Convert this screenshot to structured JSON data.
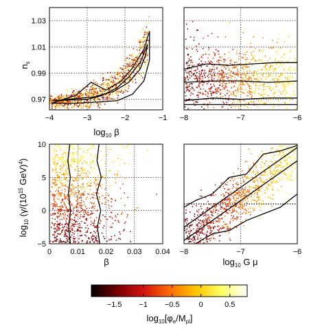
{
  "chart_data": [
    {
      "panel": "top-left",
      "type": "scatter",
      "xlabel": "log10 β",
      "ylabel": "n_s",
      "xlim": [
        -4,
        -1
      ],
      "ylim": [
        0.962,
        1.04
      ],
      "xticks": [
        "-4",
        "-3",
        "-2",
        "-1"
      ],
      "yticks": [
        "0.97",
        "0.99",
        "1.01",
        "1.03"
      ],
      "grid": true,
      "scatter_trend": {
        "x": [
          -4,
          -3.5,
          -3,
          -2.6,
          -2.2,
          -1.9,
          -1.6,
          -1.4
        ],
        "y": [
          0.968,
          0.969,
          0.971,
          0.975,
          0.982,
          0.991,
          1.002,
          1.012
        ]
      },
      "contours": [
        {
          "name": "inner",
          "x": [
            -3.9,
            -3.0,
            -2.6,
            -2.2,
            -1.9,
            -1.6,
            -1.4,
            -1.45,
            -1.6,
            -1.9,
            -2.3,
            -2.8,
            -3.5,
            -3.9
          ],
          "y": [
            0.969,
            0.97,
            0.973,
            0.979,
            0.987,
            0.998,
            1.012,
            1.004,
            0.993,
            0.983,
            0.976,
            0.972,
            0.97,
            0.969
          ]
        },
        {
          "name": "outer",
          "x": [
            -3.95,
            -3.3,
            -2.9,
            -2.5,
            -2.1,
            -1.8,
            -1.5,
            -1.35,
            -1.35,
            -1.5,
            -1.8,
            -2.2,
            -2.7,
            -3.3,
            -3.95
          ],
          "y": [
            0.967,
            0.973,
            0.983,
            0.977,
            0.984,
            0.994,
            1.008,
            1.022,
            1.0,
            0.984,
            0.974,
            0.969,
            0.968,
            0.967,
            0.967
          ]
        }
      ]
    },
    {
      "panel": "top-right",
      "type": "scatter",
      "xlabel": "",
      "ylabel": "",
      "xlim": [
        -8,
        -6
      ],
      "ylim": [
        0.962,
        1.04
      ],
      "xticks": [
        "-8",
        "-7",
        "-6"
      ],
      "grid": true,
      "scatter_band": {
        "y_center": 0.985,
        "y_spread": 0.013
      },
      "contours": [
        {
          "name": "upper",
          "x": [
            -8,
            -7.6,
            -7.2,
            -6.8,
            -6.4,
            -6
          ],
          "y": [
            0.993,
            0.997,
            0.996,
            0.997,
            0.998,
            0.998
          ]
        },
        {
          "name": "middle",
          "x": [
            -8,
            -7.5,
            -7,
            -6.5,
            -6
          ],
          "y": [
            0.983,
            0.984,
            0.984,
            0.983,
            0.984
          ]
        },
        {
          "name": "lower",
          "x": [
            -8,
            -7.5,
            -7,
            -6.5,
            -6
          ],
          "y": [
            0.969,
            0.971,
            0.97,
            0.971,
            0.971
          ]
        },
        {
          "name": "bottom",
          "x": [
            -8,
            -7,
            -6
          ],
          "y": [
            0.966,
            0.966,
            0.966
          ]
        }
      ]
    },
    {
      "panel": "bottom-left",
      "type": "scatter",
      "xlabel": "β",
      "ylabel": "log10 (γ/(10^15 GeV)^4)",
      "xlim": [
        0,
        0.04
      ],
      "ylim": [
        -5,
        10
      ],
      "xticks": [
        "0",
        "0.01",
        "0.02",
        "0.03",
        "0.04"
      ],
      "yticks": [
        "-5",
        "0",
        "5",
        "10"
      ],
      "grid": true,
      "contours": [
        {
          "name": "left",
          "x": [
            0.0072,
            0.0065,
            0.0074,
            0.0067,
            0.0075,
            0.0068,
            0.0074
          ],
          "y": [
            10,
            7.5,
            5,
            2.5,
            0,
            -2.5,
            -5
          ]
        },
        {
          "name": "right",
          "x": [
            0.0175,
            0.0168,
            0.0183,
            0.0166,
            0.0181,
            0.0169,
            0.0178
          ],
          "y": [
            10,
            7.5,
            5,
            2.5,
            0,
            -2.5,
            -5
          ]
        }
      ]
    },
    {
      "panel": "bottom-right",
      "type": "scatter",
      "xlabel": "log10 G μ",
      "ylabel": "",
      "xlim": [
        -8,
        -6
      ],
      "ylim": [
        -5,
        10
      ],
      "xticks": [
        "-8",
        "-7",
        "-6"
      ],
      "grid": true,
      "scatter_trend": {
        "x": [
          -8,
          -6
        ],
        "y": [
          -4.5,
          8.5
        ]
      },
      "contours": [
        {
          "name": "center-upper",
          "x": [
            -8,
            -6
          ],
          "y": [
            -2.5,
            9.5
          ]
        },
        {
          "name": "center-lower",
          "x": [
            -8,
            -6
          ],
          "y": [
            -4.5,
            7.5
          ]
        },
        {
          "name": "outer-upper",
          "x": [
            -8,
            -7.8,
            -7.5,
            -7.2,
            -6.9,
            -6.6,
            -6.3,
            -6.0
          ],
          "y": [
            0.5,
            1.5,
            2.5,
            5.0,
            5.5,
            8.5,
            9.0,
            9.8
          ]
        },
        {
          "name": "outer-lower",
          "x": [
            -7.8,
            -7.5,
            -7.2,
            -6.9,
            -6.6,
            -6.3,
            -6.0
          ],
          "y": [
            -5.0,
            -3.5,
            -3.0,
            -1.5,
            -0.5,
            0.5,
            2.5
          ]
        }
      ]
    }
  ],
  "colorbar": {
    "label": "log10[φe/Mpl]",
    "min": -1.9,
    "max": 0.8,
    "ticks": [
      "-1.5",
      "-1",
      "-0.5",
      "0",
      "0.5"
    ],
    "colors": [
      "#000000",
      "#7a0000",
      "#d01010",
      "#ff6a00",
      "#ffc400",
      "#ffff60",
      "#ffffff"
    ]
  }
}
